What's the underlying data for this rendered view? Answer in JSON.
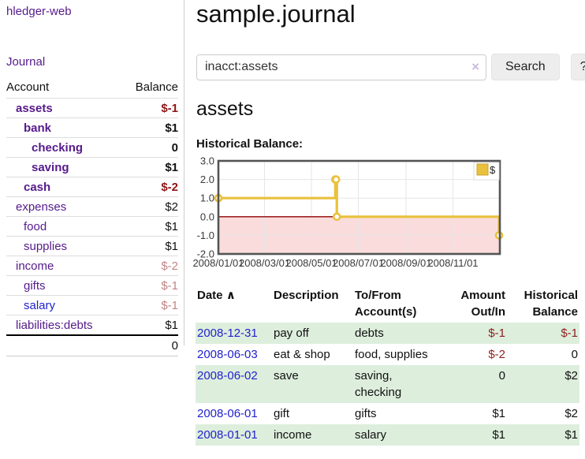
{
  "app": {
    "brand": "hledger-web",
    "nav_journal": "Journal"
  },
  "sidebar": {
    "header": {
      "account": "Account",
      "balance": "Balance"
    },
    "rows": [
      {
        "account": "assets",
        "balance": "$-1"
      },
      {
        "account": "bank",
        "balance": "$1"
      },
      {
        "account": "checking",
        "balance": "0"
      },
      {
        "account": "saving",
        "balance": "$1"
      },
      {
        "account": "cash",
        "balance": "$-2"
      },
      {
        "account": "expenses",
        "balance": "$2"
      },
      {
        "account": "food",
        "balance": "$1"
      },
      {
        "account": "supplies",
        "balance": "$1"
      },
      {
        "account": "income",
        "balance": "$-2"
      },
      {
        "account": "gifts",
        "balance": "$-1"
      },
      {
        "account": "salary",
        "balance": "$-1"
      },
      {
        "account": "liabilities:debts",
        "balance": "$1"
      }
    ],
    "total": "0"
  },
  "main": {
    "title": "sample.journal",
    "search": {
      "value": "inacct:assets",
      "clear_label": "×",
      "button_label": "Search",
      "help_label": "?"
    },
    "account_heading": "assets",
    "chart_label": "Historical Balance:"
  },
  "chart_data": {
    "type": "line",
    "title": "Historical Balance",
    "legend": {
      "position": "top-right",
      "entries": [
        {
          "label": "$",
          "color": "#e9c13d"
        }
      ]
    },
    "series": [
      {
        "name": "$",
        "color": "#e9c13d",
        "step": true,
        "points": [
          {
            "x": "2008-01-01",
            "y": 1
          },
          {
            "x": "2008-06-01",
            "y": 2
          },
          {
            "x": "2008-06-02",
            "y": 2
          },
          {
            "x": "2008-06-03",
            "y": 0
          },
          {
            "x": "2008-12-31",
            "y": -1
          }
        ]
      }
    ],
    "xlim": [
      "2008-01-01",
      "2009-01-01"
    ],
    "ylim": [
      -2,
      3
    ],
    "x_ticks": [
      {
        "date": "2008-01-01",
        "label": "2008/01/01"
      },
      {
        "date": "2008-03-01",
        "label": "2008/03/01"
      },
      {
        "date": "2008-05-01",
        "label": "2008/05/01"
      },
      {
        "date": "2008-07-01",
        "label": "2008/07/01"
      },
      {
        "date": "2008-09-01",
        "label": "2008/09/01"
      },
      {
        "date": "2008-11-01",
        "label": "2008/11/01"
      }
    ],
    "y_ticks": [
      {
        "value": 3,
        "label": "3.0"
      },
      {
        "value": 2,
        "label": "2.0"
      },
      {
        "value": 1,
        "label": "1.0"
      },
      {
        "value": 0,
        "label": "0.0"
      },
      {
        "value": -1,
        "label": "-1.0"
      },
      {
        "value": -2,
        "label": "-2.0"
      }
    ],
    "grid": true,
    "border_color": "#545454",
    "grid_color": "#e6e6e6",
    "zero_line_color": "#8b0000",
    "negative_region_color": "#fbdcdc",
    "tick_label_color": "#3a3a3a"
  },
  "transactions": {
    "sort_indicator": "∧",
    "headers": {
      "date": "Date",
      "description": "Description",
      "accounts": "To/From Account(s)",
      "amount": "Amount Out/In",
      "balance": "Historical Balance"
    },
    "rows": [
      {
        "date": "2008-12-31",
        "description": "pay off",
        "accounts": "debts",
        "amount": "$-1",
        "balance": "$-1"
      },
      {
        "date": "2008-06-03",
        "description": "eat & shop",
        "accounts": "food, supplies",
        "amount": "$-2",
        "balance": "0"
      },
      {
        "date": "2008-06-02",
        "description": "save",
        "accounts": "saving, checking",
        "amount": "0",
        "balance": "$2"
      },
      {
        "date": "2008-06-01",
        "description": "gift",
        "accounts": "gifts",
        "amount": "$1",
        "balance": "$2"
      },
      {
        "date": "2008-01-01",
        "description": "income",
        "accounts": "salary",
        "amount": "$1",
        "balance": "$1"
      }
    ]
  }
}
